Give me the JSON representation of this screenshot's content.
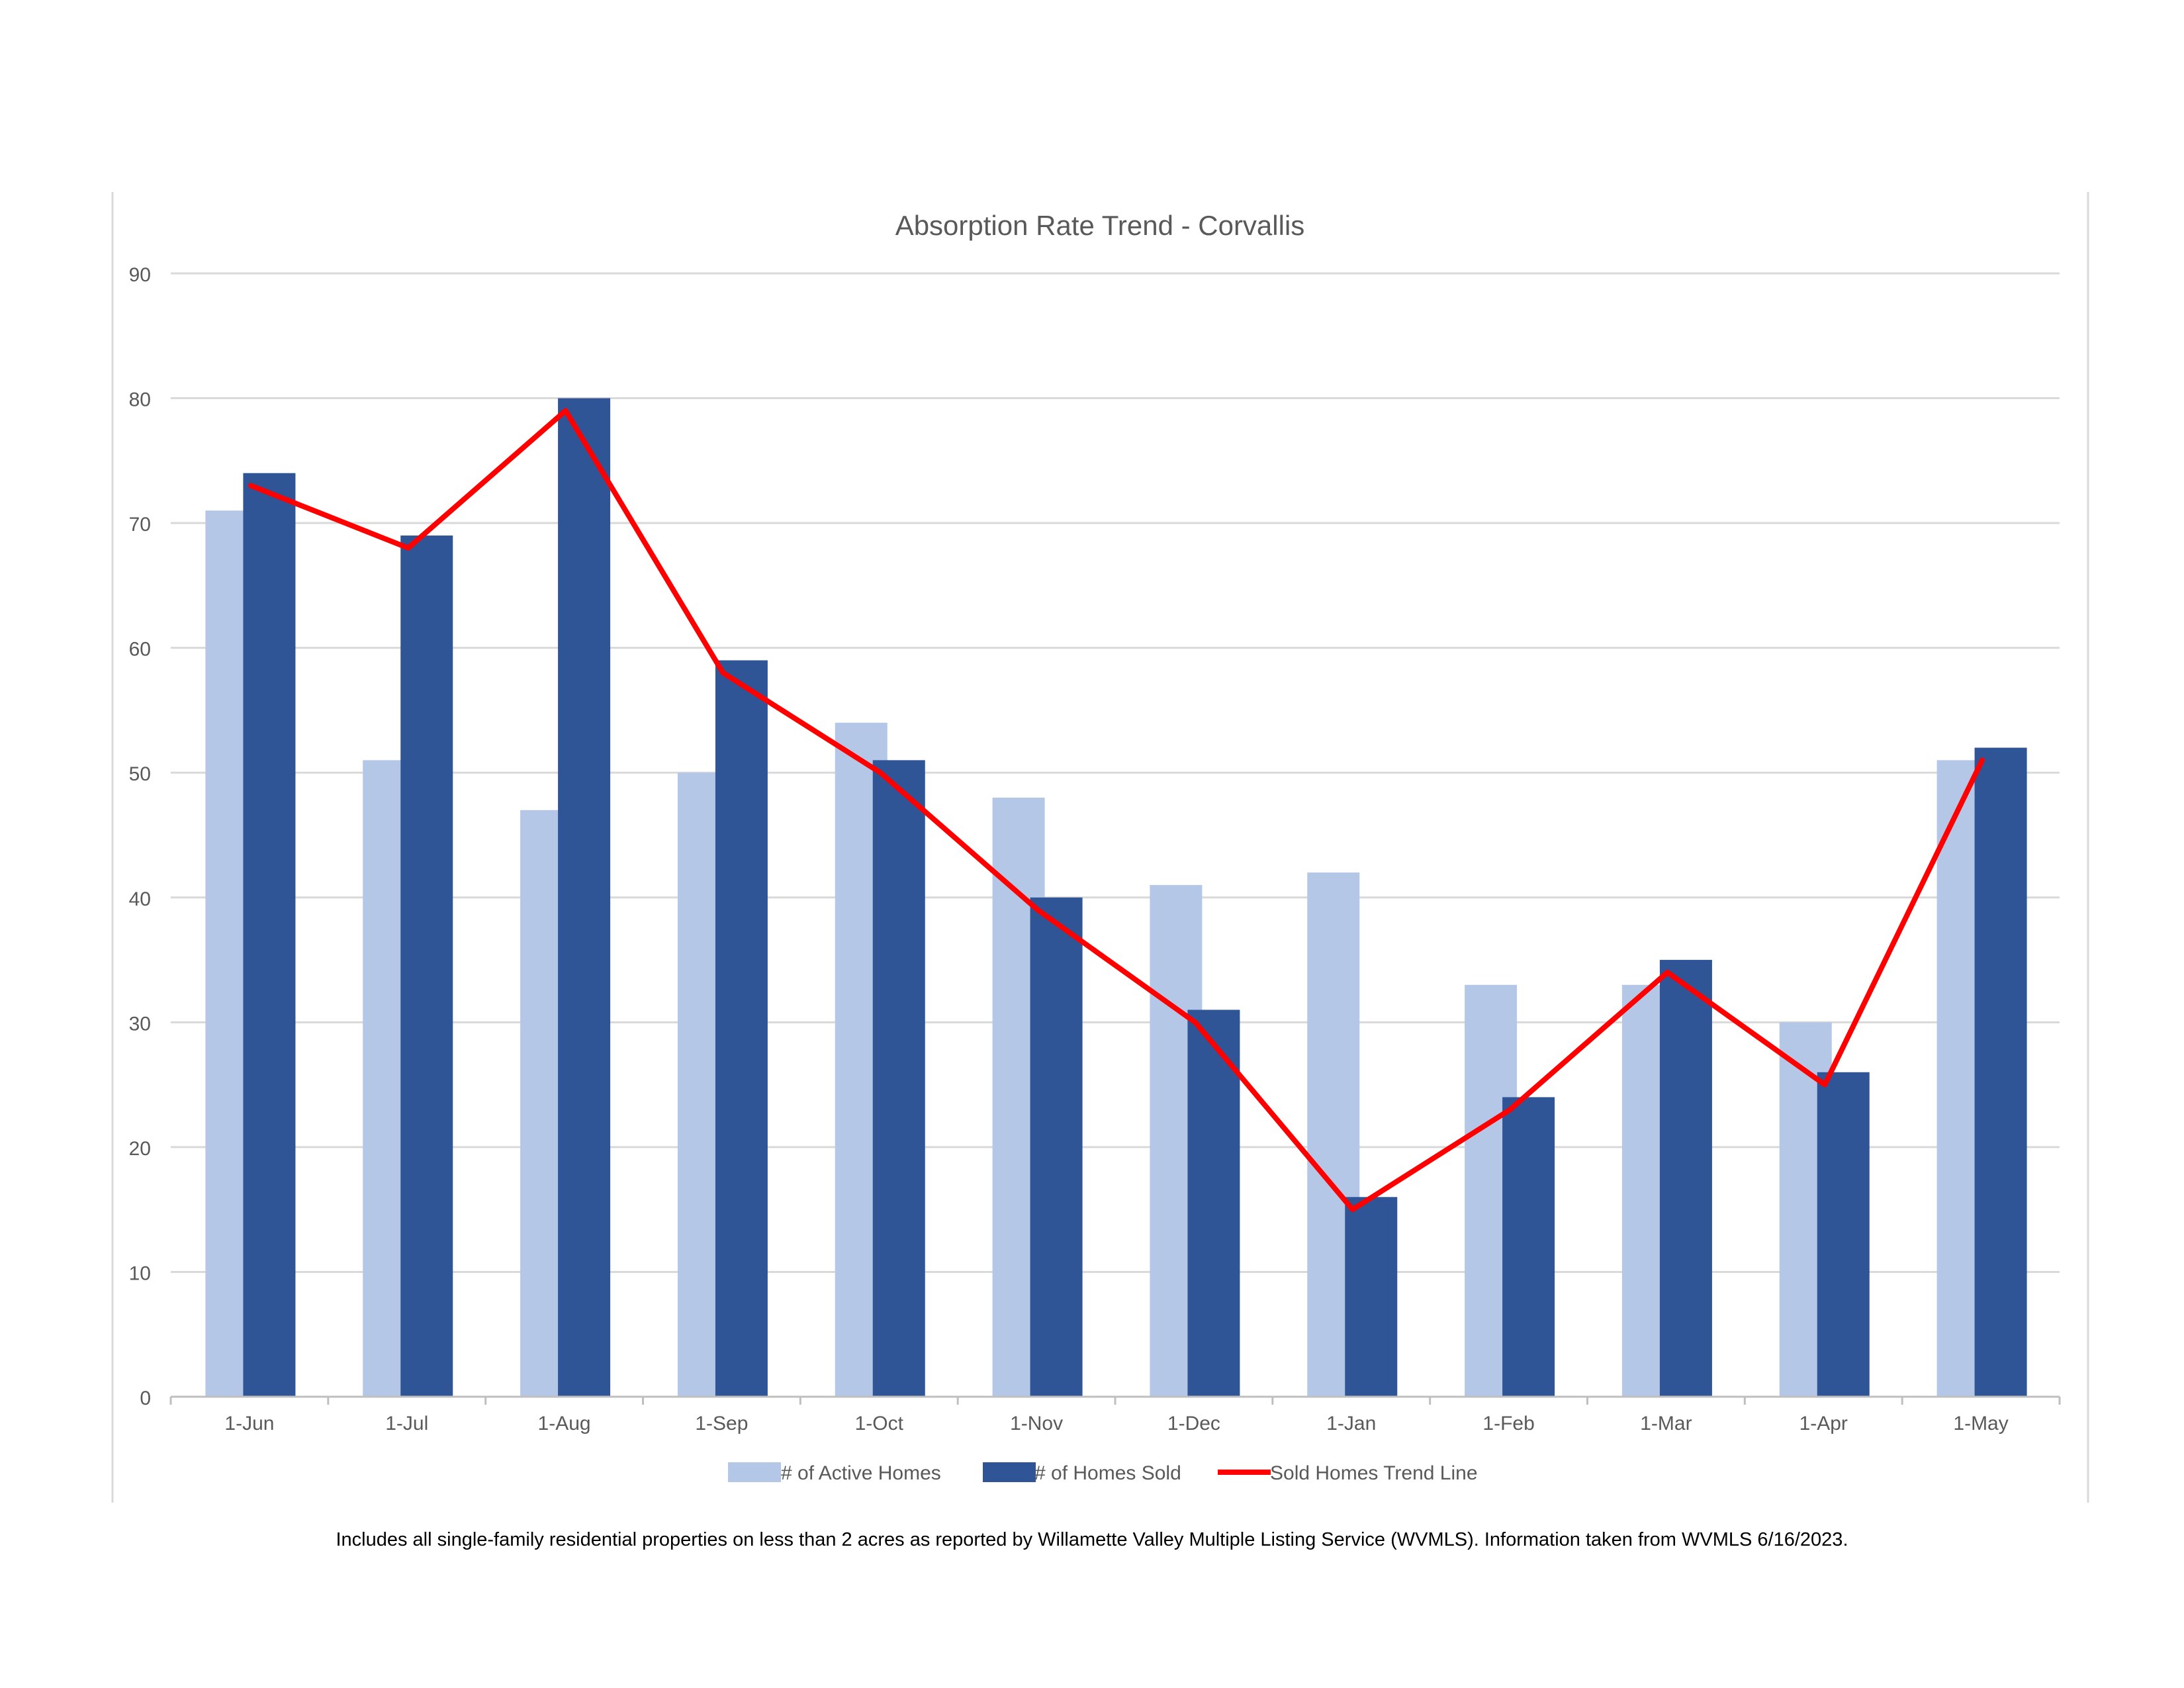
{
  "chart_data": {
    "type": "bar",
    "title": "Absorption Rate Trend - Corvallis",
    "xlabel": "",
    "ylabel": "",
    "categories": [
      "1-Jun",
      "1-Jul",
      "1-Aug",
      "1-Sep",
      "1-Oct",
      "1-Nov",
      "1-Dec",
      "1-Jan",
      "1-Feb",
      "1-Mar",
      "1-Apr",
      "1-May"
    ],
    "ylim": [
      0,
      90
    ],
    "yticks": [
      0,
      10,
      20,
      30,
      40,
      50,
      60,
      70,
      80,
      90
    ],
    "grid": true,
    "legend_position": "bottom",
    "series": [
      {
        "name": "# of Active Homes",
        "type": "bar",
        "color": "#b4c7e7",
        "values": [
          71,
          51,
          47,
          50,
          54,
          48,
          41,
          42,
          33,
          33,
          30,
          51
        ]
      },
      {
        "name": "# of Homes Sold",
        "type": "bar",
        "color": "#2f5597",
        "values": [
          74,
          69,
          80,
          59,
          51,
          40,
          31,
          16,
          24,
          35,
          26,
          52
        ]
      },
      {
        "name": "Sold Homes Trend Line",
        "type": "line",
        "color": "#ff0000",
        "values": [
          73,
          68,
          79,
          58,
          50,
          39,
          30,
          15,
          23,
          34,
          25,
          51
        ]
      }
    ]
  },
  "footnote": "Includes all single-family residential properties on less than 2 acres as reported by Willamette Valley Multiple Listing Service (WVMLS). Information taken from WVMLS 6/16/2023."
}
